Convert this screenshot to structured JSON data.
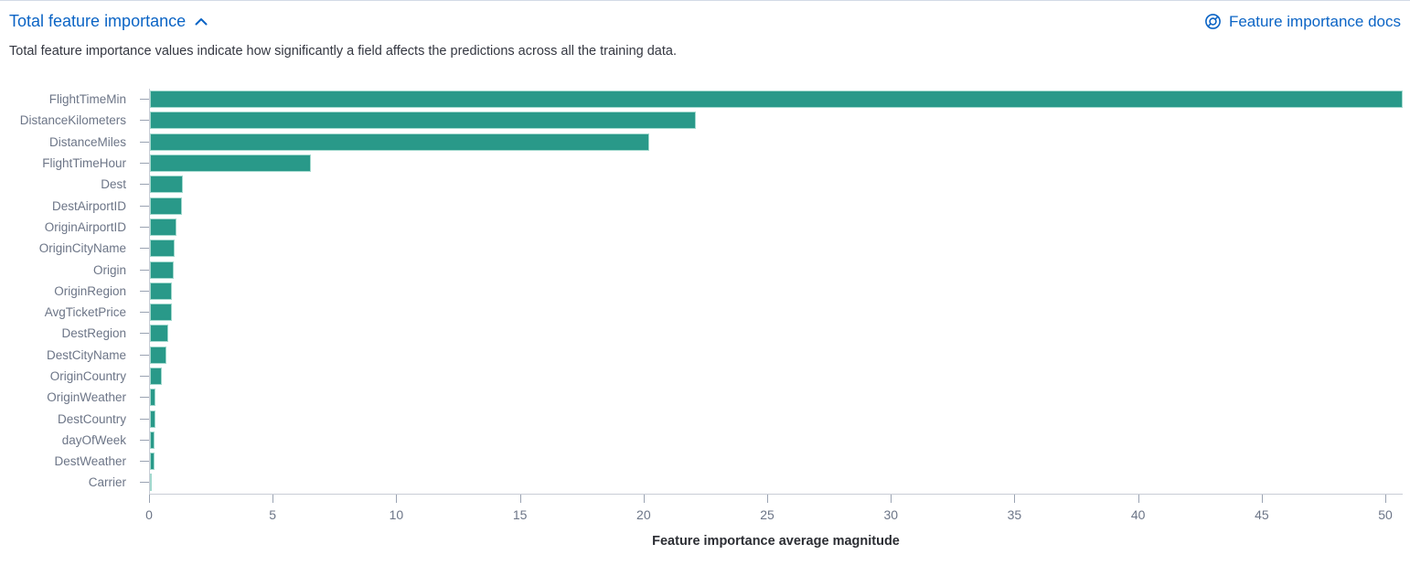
{
  "header": {
    "title": "Total feature importance",
    "collapse_icon": "chevron-up-icon",
    "docs_link_label": "Feature importance docs",
    "docs_icon": "life-ring-help-icon",
    "link_color": "#0b64c5"
  },
  "description": "Total feature importance values indicate how significantly a field affects the predictions across all the training data.",
  "chart_data": {
    "type": "bar",
    "orientation": "horizontal",
    "title": "",
    "xlabel": "Feature importance average magnitude",
    "ylabel": "",
    "categories": [
      "FlightTimeMin",
      "DistanceKilometers",
      "DistanceMiles",
      "FlightTimeHour",
      "Dest",
      "DestAirportID",
      "OriginAirportID",
      "OriginCityName",
      "Origin",
      "OriginRegion",
      "AvgTicketPrice",
      "DestRegion",
      "DestCityName",
      "OriginCountry",
      "OriginWeather",
      "DestCountry",
      "dayOfWeek",
      "DestWeather",
      "Carrier"
    ],
    "values": [
      50.7,
      22.1,
      20.2,
      6.5,
      1.35,
      1.3,
      1.08,
      1.0,
      0.95,
      0.9,
      0.87,
      0.74,
      0.65,
      0.48,
      0.22,
      0.21,
      0.2,
      0.17,
      0.07
    ],
    "x_ticks": [
      0,
      5,
      10,
      15,
      20,
      25,
      30,
      35,
      40,
      45,
      50
    ],
    "xlim": [
      0,
      50.7
    ],
    "grid": false,
    "legend": "none",
    "colors": {
      "bar_fill": "#299989",
      "bar_border": "#a2d9ce",
      "axis_line": "#c9cdd6",
      "tick_mark": "#9aa3b2",
      "tick_label": "#6c7587",
      "axis_title": "#2b2d33"
    }
  }
}
